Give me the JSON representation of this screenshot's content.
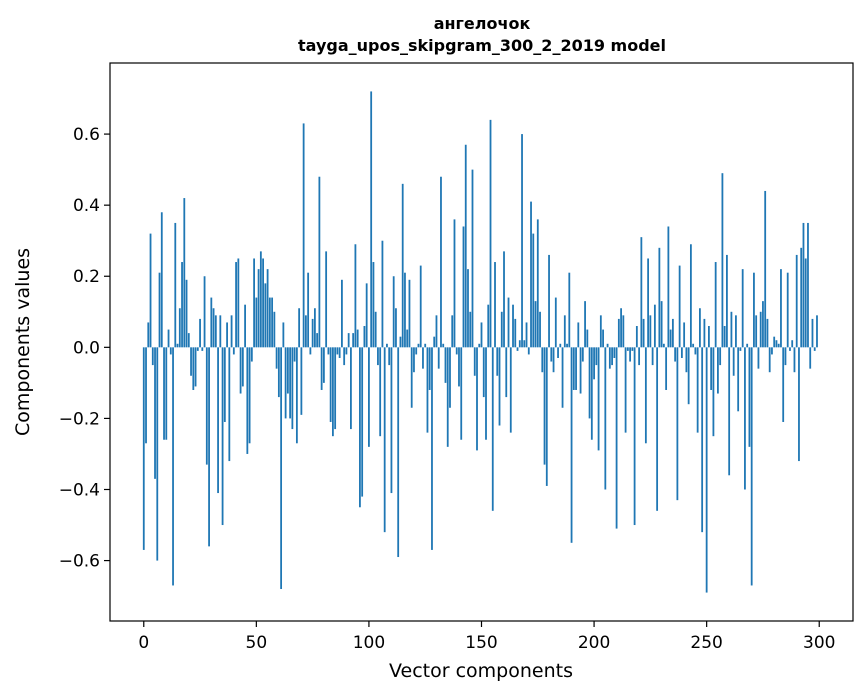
{
  "chart_data": {
    "type": "bar",
    "title": "ангелочок",
    "subtitle": "tayga_upos_skipgram_300_2_2019 model",
    "xlabel": "Vector components",
    "ylabel": "Components values",
    "xlim": [
      -15,
      315
    ],
    "ylim": [
      -0.77,
      0.8
    ],
    "xticks": [
      0,
      50,
      100,
      150,
      200,
      250,
      300
    ],
    "xtick_labels": [
      "0",
      "50",
      "100",
      "150",
      "200",
      "250",
      "300"
    ],
    "yticks": [
      -0.6,
      -0.4,
      -0.2,
      0.0,
      0.2,
      0.4,
      0.6
    ],
    "ytick_labels": [
      "−0.6",
      "−0.4",
      "−0.2",
      "0.0",
      "0.2",
      "0.4",
      "0.6"
    ],
    "bar_color": "#1f77b4",
    "x": "0..299 (component index)",
    "values": [
      -0.57,
      -0.27,
      0.07,
      0.32,
      -0.05,
      -0.37,
      -0.6,
      0.21,
      0.38,
      -0.26,
      -0.26,
      0.05,
      -0.02,
      -0.67,
      0.35,
      0.01,
      0.11,
      0.24,
      0.42,
      0.19,
      0.04,
      -0.08,
      -0.12,
      -0.11,
      -0.01,
      0.08,
      -0.01,
      0.2,
      -0.33,
      -0.56,
      0.14,
      0.11,
      0.09,
      -0.41,
      0.09,
      -0.5,
      -0.21,
      0.07,
      -0.32,
      0.09,
      -0.02,
      0.24,
      0.25,
      -0.13,
      -0.11,
      0.12,
      -0.3,
      -0.27,
      -0.04,
      0.25,
      0.14,
      0.22,
      0.27,
      0.25,
      0.18,
      0.22,
      0.14,
      0.14,
      0.1,
      -0.06,
      -0.14,
      -0.68,
      0.07,
      -0.2,
      -0.13,
      -0.2,
      -0.23,
      -0.04,
      -0.27,
      0.11,
      -0.19,
      0.63,
      0.09,
      0.21,
      -0.02,
      0.08,
      0.11,
      0.04,
      0.48,
      -0.12,
      -0.1,
      0.27,
      -0.02,
      -0.21,
      -0.25,
      -0.23,
      -0.02,
      -0.03,
      0.19,
      -0.05,
      -0.02,
      0.04,
      -0.23,
      0.04,
      0.29,
      0.05,
      -0.45,
      -0.42,
      0.06,
      0.18,
      -0.28,
      0.72,
      0.24,
      0.1,
      -0.05,
      -0.25,
      0.3,
      -0.52,
      0.01,
      -0.05,
      -0.41,
      0.2,
      0.11,
      -0.59,
      0.03,
      0.46,
      0.21,
      0.05,
      0.19,
      -0.17,
      -0.07,
      -0.02,
      0.01,
      0.23,
      -0.06,
      0.01,
      -0.24,
      -0.12,
      -0.57,
      0.03,
      0.09,
      -0.06,
      0.48,
      0.01,
      -0.1,
      -0.28,
      -0.17,
      0.09,
      0.36,
      -0.02,
      -0.11,
      -0.26,
      0.34,
      0.57,
      0.22,
      0.1,
      0.5,
      -0.08,
      -0.29,
      0.01,
      0.07,
      -0.14,
      -0.26,
      0.12,
      0.64,
      -0.46,
      0.24,
      -0.08,
      -0.22,
      0.1,
      0.27,
      -0.14,
      0.14,
      -0.24,
      0.12,
      0.08,
      -0.01,
      0.02,
      0.6,
      0.02,
      0.07,
      -0.02,
      0.41,
      0.32,
      0.13,
      0.36,
      0.1,
      -0.07,
      -0.33,
      -0.39,
      0.26,
      -0.04,
      -0.07,
      0.14,
      -0.03,
      0.01,
      -0.17,
      0.09,
      0.01,
      0.21,
      -0.55,
      -0.12,
      -0.12,
      0.07,
      -0.13,
      -0.04,
      0.13,
      0.05,
      -0.2,
      -0.26,
      -0.09,
      -0.05,
      -0.29,
      0.09,
      0.05,
      -0.4,
      0.01,
      -0.06,
      -0.05,
      -0.03,
      -0.51,
      0.08,
      0.11,
      0.09,
      -0.24,
      -0.01,
      -0.04,
      -0.01,
      -0.5,
      0.06,
      -0.05,
      0.31,
      0.08,
      -0.27,
      0.25,
      0.09,
      -0.05,
      0.12,
      -0.46,
      0.28,
      0.13,
      0.01,
      -0.12,
      0.34,
      0.05,
      0.08,
      -0.04,
      -0.43,
      0.23,
      -0.03,
      0.07,
      -0.07,
      -0.16,
      0.29,
      0.01,
      -0.02,
      -0.24,
      0.11,
      -0.52,
      0.08,
      -0.69,
      0.06,
      -0.12,
      -0.25,
      0.24,
      -0.13,
      -0.05,
      0.49,
      0.06,
      0.26,
      -0.36,
      0.1,
      -0.08,
      0.09,
      -0.18,
      -0.01,
      0.22,
      -0.4,
      0.01,
      -0.28,
      -0.67,
      0.21,
      0.09,
      -0.06,
      0.1,
      0.13,
      0.44,
      0.08,
      -0.07,
      -0.02,
      0.03,
      0.02,
      0.01,
      0.22,
      -0.21,
      -0.05,
      0.21,
      -0.01,
      0.02,
      -0.07,
      0.26,
      -0.32,
      0.28,
      0.35,
      0.25,
      0.35,
      -0.06,
      0.08,
      -0.01,
      0.09
    ]
  }
}
